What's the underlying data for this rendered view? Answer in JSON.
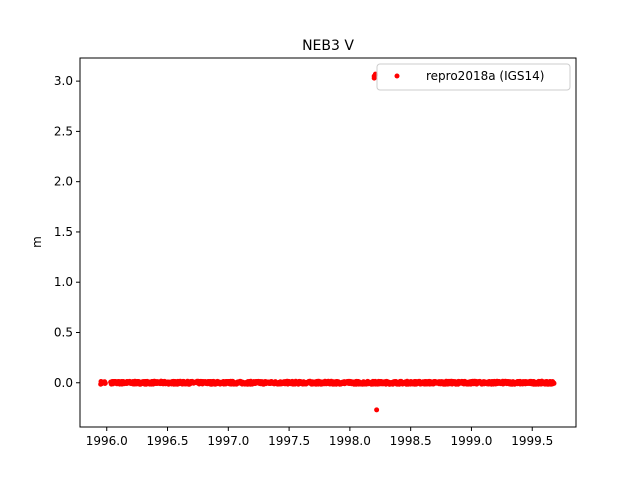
{
  "chart_data": {
    "type": "scatter",
    "title": "NEB3 V",
    "xlabel": "",
    "ylabel": "m",
    "xlim": [
      1995.78,
      1999.86
    ],
    "ylim": [
      -0.44,
      3.23
    ],
    "x_ticks": [
      1996.0,
      1996.5,
      1997.0,
      1997.5,
      1998.0,
      1998.5,
      1999.0,
      1999.5
    ],
    "x_tick_labels": [
      "1996.0",
      "1996.5",
      "1997.0",
      "1997.5",
      "1998.0",
      "1998.5",
      "1999.0",
      "1999.5"
    ],
    "y_ticks": [
      0.0,
      0.5,
      1.0,
      1.5,
      2.0,
      2.5,
      3.0
    ],
    "y_tick_labels": [
      "0.0",
      "0.5",
      "1.0",
      "1.5",
      "2.0",
      "2.5",
      "3.0"
    ],
    "grid": false,
    "legend_position": "upper right",
    "series": [
      {
        "name": "repro2018a (IGS14)",
        "color": "#ff0000",
        "marker": "circle",
        "x_range": [
          1995.95,
          1999.68
        ],
        "baseline_y": 0.0,
        "noise_amplitude": 0.015,
        "sampling": "daily",
        "outliers": [
          {
            "x": 1998.2,
            "y": 3.03
          },
          {
            "x": 1998.2,
            "y": 3.05
          },
          {
            "x": 1998.21,
            "y": 3.07
          },
          {
            "x": 1998.21,
            "y": 3.06
          },
          {
            "x": 1998.22,
            "y": -0.27
          }
        ]
      }
    ]
  }
}
